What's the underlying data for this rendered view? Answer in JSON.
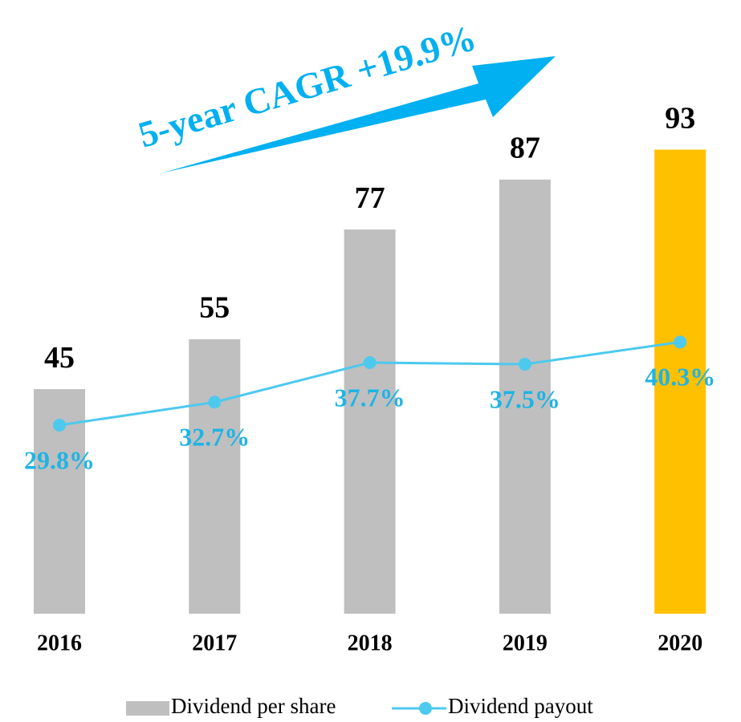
{
  "chart_data": {
    "type": "bar",
    "annotation": "5-year CAGR +19.9%",
    "categories": [
      "2016",
      "2017",
      "2018",
      "2019",
      "2020"
    ],
    "ylim": [
      0,
      100
    ],
    "y2lim": [
      6,
      69
    ],
    "series": [
      {
        "name": "Dividend per share",
        "type": "bar",
        "color": "#bfbfbf",
        "colors": [
          "#bfbfbf",
          "#bfbfbf",
          "#bfbfbf",
          "#bfbfbf",
          "#ffc000"
        ],
        "values": [
          45,
          55,
          77,
          87,
          93
        ]
      },
      {
        "name": "Dividend payout",
        "type": "line",
        "axis": "y2",
        "color": "#4dc9ee",
        "values": [
          29.8,
          32.7,
          37.7,
          37.5,
          40.3
        ],
        "value_labels": [
          "29.8%",
          "32.7%",
          "37.7%",
          "37.5%",
          "40.3%"
        ]
      }
    ],
    "legend": "bottom"
  }
}
